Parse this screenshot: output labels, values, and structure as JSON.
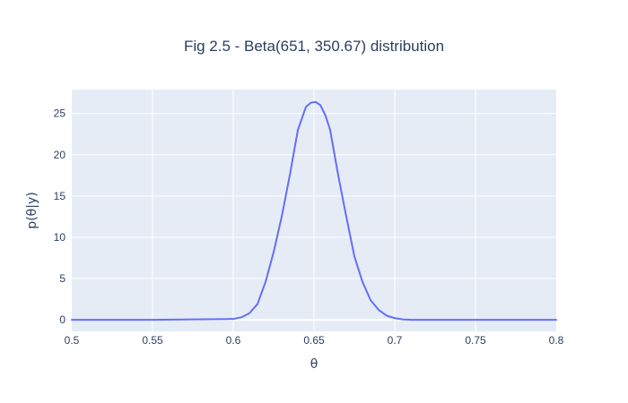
{
  "chart_data": {
    "type": "line",
    "title": "Fig 2.5 - Beta(651, 350.67) distribution",
    "xlabel": "θ",
    "ylabel": "p(θ|y)",
    "xlim": [
      0.5,
      0.8
    ],
    "ylim": [
      -1.4,
      27.9
    ],
    "x_ticks": [
      {
        "value": 0.5,
        "label": "0.5"
      },
      {
        "value": 0.55,
        "label": "0.55"
      },
      {
        "value": 0.6,
        "label": "0.6"
      },
      {
        "value": 0.65,
        "label": "0.65"
      },
      {
        "value": 0.7,
        "label": "0.7"
      },
      {
        "value": 0.75,
        "label": "0.75"
      },
      {
        "value": 0.8,
        "label": "0.8"
      }
    ],
    "y_ticks": [
      {
        "value": 0,
        "label": "0"
      },
      {
        "value": 5,
        "label": "5"
      },
      {
        "value": 10,
        "label": "10"
      },
      {
        "value": 15,
        "label": "15"
      },
      {
        "value": 20,
        "label": "20"
      },
      {
        "value": 25,
        "label": "25"
      }
    ],
    "grid": true,
    "colors": {
      "line": "#636efa",
      "plot_bg": "#e5ecf6",
      "grid": "#ffffff",
      "text": "#2a3f5f"
    },
    "series": [
      {
        "x": [
          0.5,
          0.55,
          0.6,
          0.605,
          0.61,
          0.615,
          0.62,
          0.625,
          0.63,
          0.635,
          0.64,
          0.645,
          0.648,
          0.651,
          0.654,
          0.657,
          0.66,
          0.665,
          0.67,
          0.675,
          0.68,
          0.685,
          0.69,
          0.695,
          0.7,
          0.705,
          0.71,
          0.75,
          0.8
        ],
        "y": [
          0,
          0,
          0.1,
          0.3,
          0.8,
          1.9,
          4.6,
          8.2,
          12.5,
          17.5,
          23.0,
          25.8,
          26.3,
          26.4,
          26.0,
          24.8,
          23.0,
          17.5,
          12.5,
          7.7,
          4.6,
          2.4,
          1.2,
          0.5,
          0.2,
          0.05,
          0,
          0,
          0
        ]
      }
    ]
  }
}
